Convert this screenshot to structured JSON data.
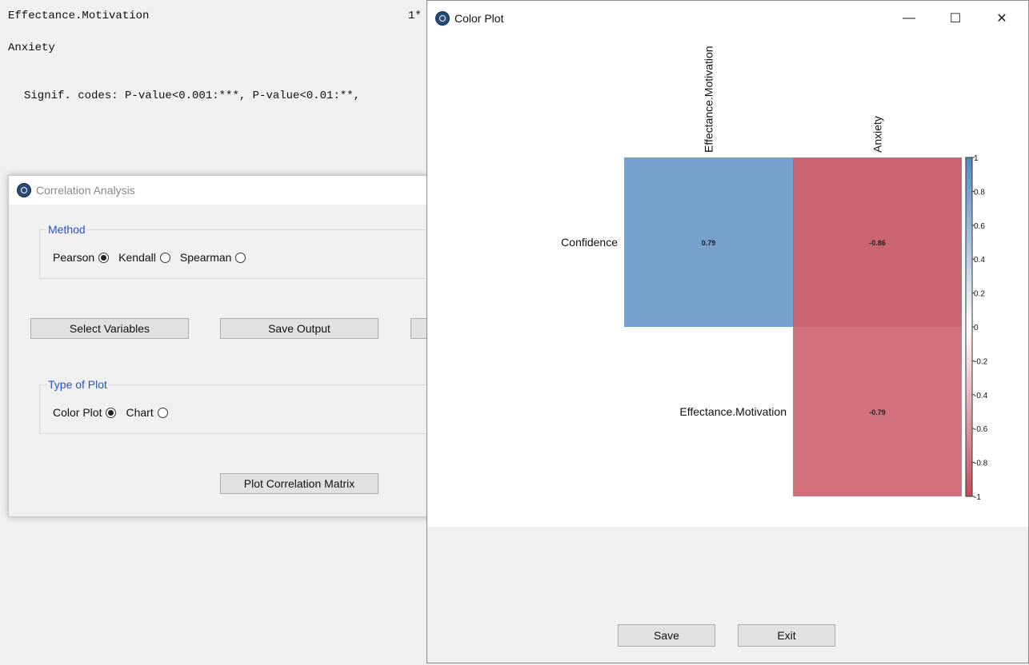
{
  "console": {
    "line1_label": "Effectance.Motivation",
    "line1_value": "1*",
    "line2_label": "Anxiety",
    "signif": "Signif. codes: P-value<0.001:***, P-value<0.01:**,"
  },
  "correlation_window": {
    "title": "Correlation Analysis",
    "method_legend": "Method",
    "methods": [
      {
        "label": "Pearson",
        "checked": true
      },
      {
        "label": "Kendall",
        "checked": false
      },
      {
        "label": "Spearman",
        "checked": false
      }
    ],
    "select_variables": "Select Variables",
    "save_output": "Save Output",
    "plot_type_legend": "Type of Plot",
    "plot_types": [
      {
        "label": "Color Plot",
        "checked": true
      },
      {
        "label": "Chart",
        "checked": false
      }
    ],
    "plot_button": "Plot Correlation Matrix"
  },
  "plot_window": {
    "title": "Color Plot",
    "minimize": "—",
    "maximize": "☐",
    "close": "✕",
    "save_button": "Save",
    "exit_button": "Exit"
  },
  "chart_data": {
    "type": "heatmap",
    "title": "",
    "columns": [
      "Effectance.Motivation",
      "Anxiety"
    ],
    "rows": [
      "Confidence",
      "Effectance.Motivation"
    ],
    "cells": [
      {
        "row": "Confidence",
        "col": "Effectance.Motivation",
        "value": 0.79,
        "label": "0.79"
      },
      {
        "row": "Confidence",
        "col": "Anxiety",
        "value": -0.86,
        "label": "-0.86"
      },
      {
        "row": "Effectance.Motivation",
        "col": "Anxiety",
        "value": -0.79,
        "label": "-0.79"
      }
    ],
    "colorbar": {
      "range": [
        -1,
        1
      ],
      "ticks": [
        1,
        0.8,
        0.6,
        0.4,
        0.2,
        0,
        -0.2,
        -0.4,
        -0.6,
        -0.8,
        -1
      ],
      "tick_labels": [
        "1",
        "0.8",
        "0.6",
        "0.4",
        "0.2",
        "0",
        "-0.2",
        "-0.4",
        "-0.6",
        "-0.8",
        "-1"
      ],
      "positive_color": "#2166ac",
      "neutral_color": "#ffffff",
      "negative_color": "#b2182b"
    }
  }
}
